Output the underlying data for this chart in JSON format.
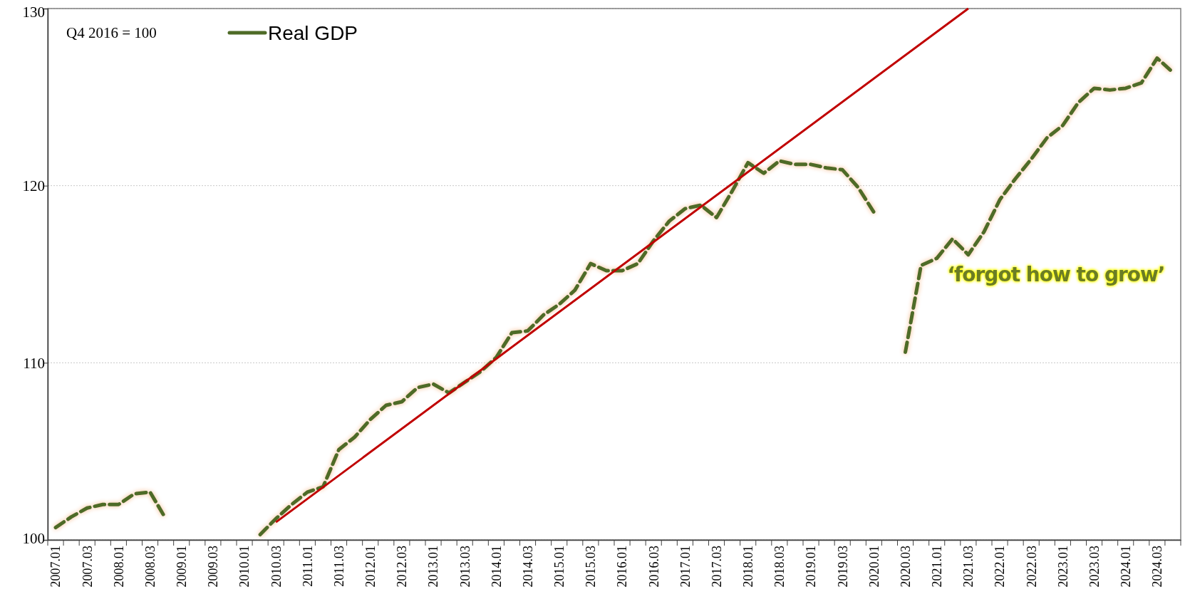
{
  "chart_data": {
    "type": "line",
    "categories": [
      "2007.01",
      null,
      "2007.03",
      null,
      "2008.01",
      null,
      "2008.03",
      null,
      "2009.01",
      null,
      "2009.03",
      null,
      "2010.01",
      null,
      "2010.03",
      null,
      "2011.01",
      null,
      "2011.03",
      null,
      "2012.01",
      null,
      "2012.03",
      null,
      "2013.01",
      null,
      "2013.03",
      null,
      "2014.01",
      null,
      "2014.03",
      null,
      "2015.01",
      null,
      "2015.03",
      null,
      "2016.01",
      null,
      "2016.03",
      null,
      "2017.01",
      null,
      "2017.03",
      null,
      "2018.01",
      null,
      "2018.03",
      null,
      "2019.01",
      null,
      "2019.03",
      null,
      "2020.01",
      null,
      "2020.03",
      null,
      "2021.01",
      null,
      "2021.03",
      null,
      "2022.01",
      null,
      "2022.03",
      null,
      "2023.01",
      null,
      "2023.03",
      null,
      "2024.01",
      null,
      "2024.03",
      null
    ],
    "series": [
      {
        "name": "Real GDP",
        "color": "#4e6b27",
        "line_style": "dashed",
        "values": [
          100.7,
          101.3,
          101.8,
          102.0,
          102.0,
          102.6,
          102.7,
          101.2,
          null,
          null,
          null,
          null,
          null,
          100.3,
          101.2,
          102.0,
          102.7,
          103.0,
          105.1,
          105.8,
          106.8,
          107.6,
          107.8,
          108.6,
          108.8,
          108.3,
          108.9,
          109.5,
          110.3,
          111.7,
          111.8,
          112.7,
          113.3,
          114.1,
          115.6,
          115.2,
          115.2,
          115.6,
          116.9,
          118.0,
          118.7,
          118.9,
          118.2,
          119.7,
          121.3,
          120.7,
          121.4,
          121.2,
          121.2,
          121.0,
          120.9,
          119.9,
          118.5,
          null,
          110.6,
          115.5,
          115.9,
          117.0,
          116.1,
          117.4,
          119.2,
          120.4,
          121.5,
          122.7,
          123.4,
          124.7,
          125.5,
          125.4,
          125.5,
          125.8,
          127.2,
          126.4
        ]
      },
      {
        "type": "line",
        "color": "#c00000",
        "line_style": "solid",
        "x": [
          "2010.03",
          "2021.03"
        ],
        "values": [
          101.0,
          130
        ]
      }
    ],
    "ylim": [
      100,
      130
    ],
    "yticks": [
      100,
      110,
      120,
      130
    ],
    "grid": "y",
    "legend": "top left",
    "marker": "none",
    "annotations": [
      "Q4 2016 = 100",
      "‘forgot how to grow’"
    ]
  }
}
